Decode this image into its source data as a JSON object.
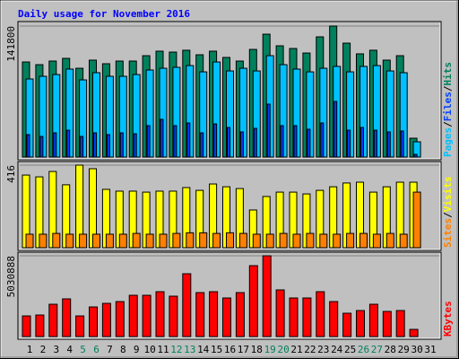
{
  "chart_data": [
    {
      "type": "bar",
      "title": "Daily usage for November 2016",
      "categories": [
        "1",
        "2",
        "3",
        "4",
        "5",
        "6",
        "7",
        "8",
        "9",
        "10",
        "11",
        "12",
        "13",
        "14",
        "15",
        "16",
        "17",
        "18",
        "19",
        "20",
        "21",
        "22",
        "23",
        "24",
        "25",
        "26",
        "27",
        "28",
        "29",
        "30",
        "31"
      ],
      "highlight_indices": [
        4,
        5,
        11,
        12,
        18,
        19,
        25,
        26
      ],
      "highlight_color": "#00805c",
      "separator": "/",
      "ylim": [
        0,
        141800
      ],
      "yticks": [
        141800
      ],
      "series": [
        {
          "name": "Pages",
          "color": "#00c0ff",
          "values": [
            84500,
            87400,
            89300,
            95200,
            83500,
            91300,
            87400,
            87400,
            89300,
            94200,
            96100,
            97100,
            99000,
            92200,
            102900,
            93200,
            96100,
            93200,
            109700,
            100000,
            95200,
            92200,
            96100,
            98100,
            92200,
            98100,
            99000,
            93200,
            91300,
            16500,
            0
          ]
        },
        {
          "name": "Files",
          "color": "#0040ff",
          "values": [
            24300,
            22300,
            26200,
            29100,
            22300,
            26200,
            24300,
            26200,
            25200,
            34000,
            40800,
            34000,
            36900,
            26200,
            35900,
            32000,
            27200,
            31100,
            57300,
            34000,
            34000,
            30100,
            36900,
            60200,
            29100,
            32000,
            29100,
            27200,
            28200,
            2900,
            0
          ]
        },
        {
          "name": "Hits",
          "color": "#00805c",
          "values": [
            102900,
            100000,
            103900,
            106800,
            96100,
            104900,
            101000,
            103900,
            103900,
            109700,
            114600,
            113600,
            115600,
            110700,
            114600,
            107800,
            103900,
            116500,
            133000,
            120400,
            117500,
            112600,
            130100,
            141800,
            123300,
            111700,
            115600,
            104900,
            109700,
            20400,
            0
          ]
        }
      ]
    },
    {
      "type": "bar",
      "ylim": [
        0,
        416
      ],
      "yticks": [
        416
      ],
      "separator": "/",
      "series": [
        {
          "name": "Sites",
          "color": "#ff8000",
          "values": [
            68,
            68,
            72,
            68,
            68,
            68,
            68,
            68,
            72,
            68,
            68,
            72,
            75,
            75,
            72,
            75,
            72,
            68,
            68,
            72,
            68,
            72,
            68,
            68,
            72,
            72,
            68,
            72,
            68,
            280,
            0
          ]
        },
        {
          "name": "Visits",
          "color": "#ffff00",
          "values": [
            366,
            357,
            384,
            317,
            416,
            398,
            294,
            285,
            285,
            280,
            285,
            285,
            303,
            289,
            321,
            307,
            298,
            190,
            258,
            280,
            280,
            271,
            289,
            307,
            326,
            330,
            280,
            307,
            330,
            330,
            0
          ]
        }
      ]
    },
    {
      "type": "bar",
      "ylim": [
        0,
        5030888
      ],
      "yticks": [
        5030888
      ],
      "series": [
        {
          "name": "KBytes",
          "color": "#ff0000",
          "values": [
            1285700,
            1341600,
            2012400,
            2347800,
            1285700,
            1844700,
            2068300,
            2180100,
            2571400,
            2571400,
            2795000,
            2515500,
            3912900,
            2739100,
            2795000,
            2403700,
            2739100,
            4416000,
            5030888,
            2906700,
            2403700,
            2403700,
            2795000,
            2180100,
            1453400,
            1621100,
            2012400,
            1565200,
            1621100,
            447200,
            0
          ]
        }
      ]
    }
  ]
}
